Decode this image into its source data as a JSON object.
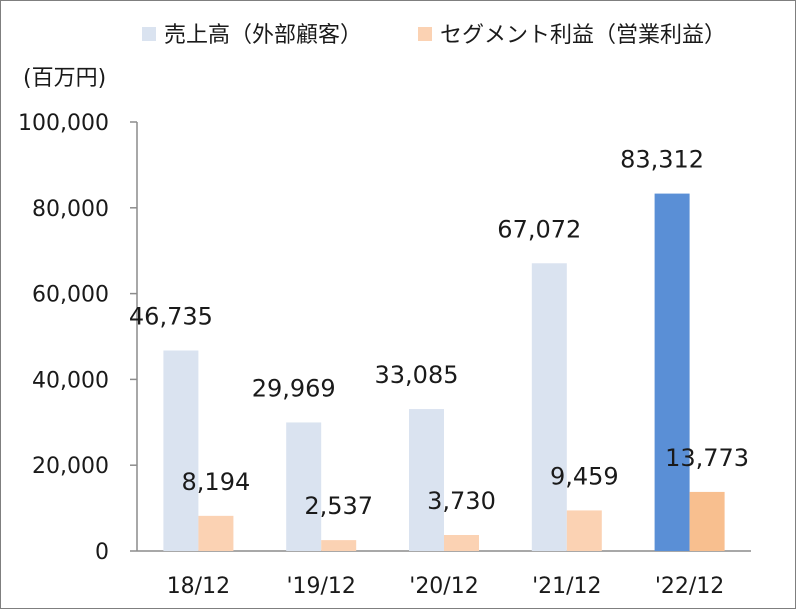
{
  "chart_data": {
    "type": "bar",
    "ylabel": "(百万円)",
    "ylim": [
      0,
      100000
    ],
    "yticks": [
      0,
      20000,
      40000,
      60000,
      80000,
      100000
    ],
    "ytick_labels": [
      "0",
      "20,000",
      "40,000",
      "60,000",
      "80,000",
      "100,000"
    ],
    "categories": [
      "18/12",
      "'19/12",
      "'20/12",
      "'21/12",
      "'22/12"
    ],
    "grid": false,
    "legend_position": "top",
    "series": [
      {
        "name": "売上高（外部顧客）",
        "values": [
          46735,
          29969,
          33085,
          67072,
          83312
        ],
        "labels": [
          "46,735",
          "29,969",
          "33,085",
          "67,072",
          "83,312"
        ],
        "color": "#dae3f0",
        "highlight_color": "#5a8fd6"
      },
      {
        "name": "セグメント利益（営業利益）",
        "values": [
          8194,
          2537,
          3730,
          9459,
          13773
        ],
        "labels": [
          "8,194",
          "2,537",
          "3,730",
          "9,459",
          "13,773"
        ],
        "color": "#fbd2b3",
        "highlight_color": "#f8bf8f"
      }
    ],
    "highlight_category_index": 4
  }
}
